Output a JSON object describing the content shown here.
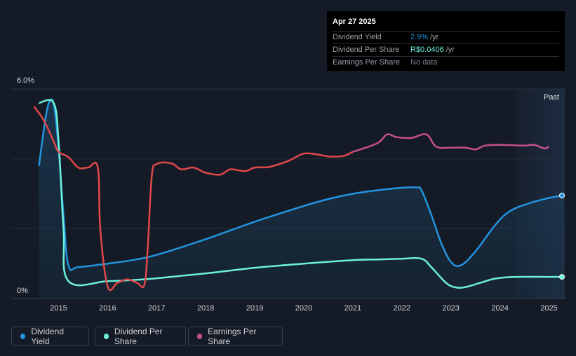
{
  "tooltip": {
    "date": "Apr 27 2025",
    "rows": [
      {
        "label": "Dividend Yield",
        "value": "2.9%",
        "unit": "/yr",
        "color": "#2394df"
      },
      {
        "label": "Dividend Per Share",
        "value": "R$0.0406",
        "unit": "/yr",
        "color": "#6cf0d8"
      },
      {
        "label": "Earnings Per Share",
        "value": "No data",
        "unit": "",
        "color": "#7a8088"
      }
    ]
  },
  "legend": [
    {
      "label": "Dividend Yield",
      "color": "#2394df"
    },
    {
      "label": "Dividend Per Share",
      "color": "#6cf0d8"
    },
    {
      "label": "Earnings Per Share",
      "color": "#c64f8d"
    }
  ],
  "chart_data": {
    "type": "line",
    "y_top_label": "6.0%",
    "y_bottom_label": "0%",
    "past_label": "Past",
    "ylim": [
      0,
      6
    ],
    "xlim": [
      2014.4,
      2025.3
    ],
    "x_ticks": [
      "2015",
      "2016",
      "2017",
      "2018",
      "2019",
      "2020",
      "2021",
      "2022",
      "2023",
      "2024",
      "2025"
    ],
    "series": [
      {
        "name": "Dividend Yield",
        "color": "#2394df",
        "x": [
          2014.6,
          2014.75,
          2014.85,
          2014.92,
          2015.0,
          2015.1,
          2015.2,
          2015.4,
          2016.0,
          2016.5,
          2017.0,
          2018.0,
          2019.0,
          2020.0,
          2020.5,
          2021.0,
          2021.5,
          2022.0,
          2022.3,
          2022.4,
          2022.6,
          2022.8,
          2023.0,
          2023.2,
          2023.5,
          2023.9,
          2024.2,
          2024.6,
          2025.0,
          2025.3
        ],
        "y": [
          3.8,
          5.3,
          5.7,
          5.4,
          4.3,
          2.4,
          0.95,
          0.9,
          1.0,
          1.1,
          1.25,
          1.7,
          2.2,
          2.65,
          2.85,
          3.0,
          3.1,
          3.17,
          3.18,
          3.1,
          2.4,
          1.6,
          1.05,
          0.95,
          1.35,
          2.1,
          2.5,
          2.73,
          2.88,
          2.95
        ]
      },
      {
        "name": "Dividend Per Share",
        "color": "#6cf0d8",
        "x": [
          2014.6,
          2014.9,
          2015.0,
          2015.1,
          2015.2,
          2016.0,
          2016.5,
          2017.0,
          2018.0,
          2019.0,
          2020.0,
          2021.0,
          2021.5,
          2022.0,
          2022.4,
          2022.6,
          2022.9,
          2023.1,
          2023.3,
          2023.6,
          2023.9,
          2024.3,
          2025.0,
          2025.3
        ],
        "y": [
          5.6,
          5.6,
          4.5,
          2.0,
          0.5,
          0.5,
          0.53,
          0.58,
          0.72,
          0.88,
          1.0,
          1.1,
          1.12,
          1.14,
          1.14,
          0.9,
          0.45,
          0.32,
          0.33,
          0.45,
          0.57,
          0.62,
          0.62,
          0.62
        ]
      },
      {
        "name": "Earnings Per Share",
        "color": "#e04848",
        "x": [
          2014.5,
          2014.7,
          2014.9,
          2015.0,
          2015.2,
          2015.4,
          2015.6,
          2015.8,
          2015.85,
          2016.0,
          2016.2,
          2016.4,
          2016.6,
          2016.75,
          2016.82,
          2016.9,
          2017.0,
          2017.3,
          2017.5,
          2017.75,
          2018.0,
          2018.3,
          2018.5,
          2018.8,
          2019.0,
          2019.3,
          2019.7,
          2020.0,
          2020.3,
          2020.5,
          2020.8,
          2021.0,
          2021.5,
          2021.7,
          2021.9,
          2022.2,
          2022.5,
          2022.7,
          2023.0,
          2023.3,
          2023.5,
          2023.7,
          2024.0,
          2024.5,
          2024.7,
          2024.9,
          2025.0
        ],
        "y": [
          5.5,
          5.1,
          4.5,
          4.2,
          4.05,
          3.75,
          3.75,
          3.75,
          2.0,
          0.35,
          0.45,
          0.55,
          0.45,
          0.4,
          1.5,
          3.5,
          3.85,
          3.87,
          3.7,
          3.75,
          3.6,
          3.55,
          3.7,
          3.65,
          3.75,
          3.77,
          3.95,
          4.15,
          4.12,
          4.07,
          4.08,
          4.2,
          4.45,
          4.7,
          4.62,
          4.6,
          4.7,
          4.35,
          4.32,
          4.32,
          4.27,
          4.38,
          4.4,
          4.38,
          4.4,
          4.3,
          4.35
        ]
      }
    ],
    "eps_color_past": "#c64f8d",
    "eps_color_split_x": 2021.0
  }
}
